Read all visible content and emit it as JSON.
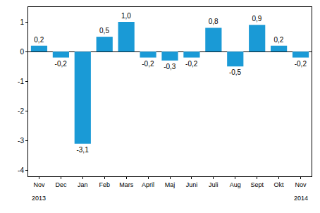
{
  "chart_data": {
    "type": "bar",
    "categories": [
      "Nov",
      "Dec",
      "Jan",
      "Feb",
      "Mars",
      "April",
      "Maj",
      "Juni",
      "Juli",
      "Aug",
      "Sept",
      "Okt",
      "Nov"
    ],
    "values": [
      0.2,
      -0.2,
      -3.1,
      0.5,
      1.0,
      -0.2,
      -0.3,
      -0.2,
      0.8,
      -0.5,
      0.9,
      0.2,
      -0.2
    ],
    "value_labels": [
      "0,2",
      "-0,2",
      "-3,1",
      "0,5",
      "1,0",
      "-0,2",
      "-0,3",
      "-0,2",
      "0,8",
      "-0,5",
      "0,9",
      "0,2",
      "-0,2"
    ],
    "data_labels": true,
    "color": "#1a9ad6",
    "ylim": [
      -4.2,
      1.5
    ],
    "yticks": [
      -4,
      -3,
      -2,
      -1,
      0,
      1
    ],
    "grid": false,
    "annotations": [
      {
        "text": "2013",
        "at": 0
      },
      {
        "text": "2014",
        "at": 12
      }
    ]
  }
}
